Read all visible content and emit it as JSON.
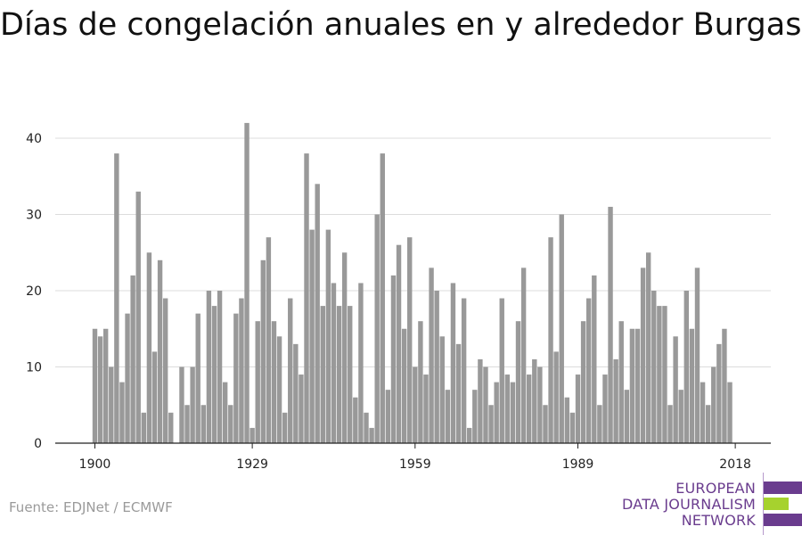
{
  "title": "Días de congelación anuales en y alrededor Burgas",
  "source": "Fuente: EDJNet / ECMWF",
  "logo": {
    "line1": "EUROPEAN",
    "line2": "DATA JOURNALISM",
    "line3": "NETWORK",
    "purple": "#6a3c8e",
    "green": "#a6d22e"
  },
  "colors": {
    "bar": "#999999",
    "grid": "#dcdcdc",
    "axis": "#222222",
    "tick_text": "#222222"
  },
  "chart_data": {
    "type": "bar",
    "title": "Días de congelación anuales en y alrededor Burgas",
    "xlabel": "",
    "ylabel": "",
    "x_range": [
      1900,
      2018
    ],
    "ylim": [
      0,
      42
    ],
    "y_ticks": [
      0,
      10,
      20,
      30,
      40
    ],
    "x_ticks": [
      1900,
      1929,
      1959,
      1989,
      2018
    ],
    "grid": true,
    "legend": "none",
    "x": [
      1900,
      1901,
      1902,
      1903,
      1904,
      1905,
      1906,
      1907,
      1908,
      1909,
      1910,
      1911,
      1912,
      1913,
      1914,
      1915,
      1916,
      1917,
      1918,
      1919,
      1920,
      1921,
      1922,
      1923,
      1924,
      1925,
      1926,
      1927,
      1928,
      1929,
      1930,
      1931,
      1932,
      1933,
      1934,
      1935,
      1936,
      1937,
      1938,
      1939,
      1940,
      1941,
      1942,
      1943,
      1944,
      1945,
      1946,
      1947,
      1948,
      1949,
      1950,
      1951,
      1952,
      1953,
      1954,
      1955,
      1956,
      1957,
      1958,
      1959,
      1960,
      1961,
      1962,
      1963,
      1964,
      1965,
      1966,
      1967,
      1968,
      1969,
      1970,
      1971,
      1972,
      1973,
      1974,
      1975,
      1976,
      1977,
      1978,
      1979,
      1980,
      1981,
      1982,
      1983,
      1984,
      1985,
      1986,
      1987,
      1988,
      1989,
      1990,
      1991,
      1992,
      1993,
      1994,
      1995,
      1996,
      1997,
      1998,
      1999,
      2000,
      2001,
      2002,
      2003,
      2004,
      2005,
      2006,
      2007,
      2008,
      2009,
      2010,
      2011,
      2012,
      2013,
      2014,
      2015,
      2016,
      2017,
      2018
    ],
    "values": [
      15,
      14,
      15,
      10,
      38,
      8,
      17,
      22,
      33,
      4,
      25,
      12,
      24,
      19,
      4,
      0,
      10,
      5,
      10,
      17,
      5,
      20,
      18,
      20,
      8,
      5,
      17,
      19,
      42,
      2,
      16,
      24,
      27,
      16,
      14,
      4,
      19,
      13,
      9,
      38,
      28,
      34,
      18,
      28,
      21,
      18,
      25,
      18,
      6,
      21,
      4,
      2,
      30,
      38,
      7,
      22,
      26,
      15,
      27,
      10,
      16,
      9,
      23,
      20,
      14,
      7,
      21,
      13,
      19,
      2,
      7,
      11,
      10,
      5,
      8,
      19,
      9,
      8,
      16,
      23,
      9,
      11,
      10,
      5,
      27,
      12,
      30,
      6,
      4,
      9,
      16,
      19,
      22,
      5,
      9,
      31,
      11,
      16,
      7,
      15,
      15,
      23,
      25,
      20,
      18,
      18,
      5,
      14,
      7,
      20,
      15,
      23,
      8,
      5,
      10,
      13,
      15,
      8,
      0
    ]
  }
}
